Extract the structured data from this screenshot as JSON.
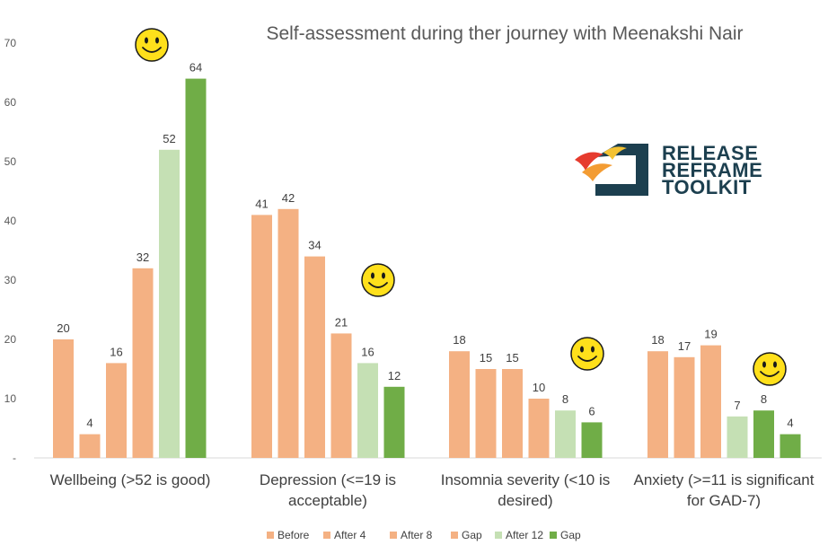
{
  "chart_data": {
    "type": "bar",
    "title": "Self-assessment during ther journey with Meenakshi Nair",
    "xlabel": "",
    "ylabel": "",
    "ylim": [
      0,
      70
    ],
    "yticks": [
      0,
      10,
      20,
      30,
      40,
      50,
      60,
      70
    ],
    "ytick_labels": [
      "-",
      "10",
      "20",
      "30",
      "40",
      "50",
      "60",
      "70"
    ],
    "grid": false,
    "legend_position": "bottom",
    "categories": [
      [
        "Wellbeing (>52 is good)"
      ],
      [
        "Depression (<=19 is",
        "acceptable)"
      ],
      [
        "Insomnia severity (<10 is",
        "desired)"
      ],
      [
        "Anxiety (>=11 is significant",
        "for GAD-7)"
      ]
    ],
    "series": [
      {
        "name": "Before",
        "color": "#f4b183",
        "values": [
          20,
          41,
          18,
          18
        ]
      },
      {
        "name": "After 4",
        "color": "#f4b183",
        "values": [
          4,
          42,
          15,
          17
        ]
      },
      {
        "name": "After 8",
        "color": "#f4b183",
        "values": [
          16,
          34,
          15,
          19
        ]
      },
      {
        "name": "Gap",
        "color": "#f4b183",
        "values": [
          32,
          21,
          10,
          null
        ]
      },
      {
        "name": "After 12",
        "color": "#c5e0b4",
        "values": [
          52,
          16,
          8,
          7
        ]
      },
      {
        "name": "Gap",
        "color": "#70ad47",
        "values": [
          64,
          12,
          6,
          8
        ]
      },
      {
        "name": "",
        "color": "#70ad47",
        "values": [
          null,
          null,
          null,
          4
        ]
      }
    ],
    "legend": [
      {
        "name": "Before",
        "color": "#f4b183"
      },
      {
        "name": "After 4",
        "color": "#f4b183"
      },
      {
        "name": "After 8",
        "color": "#f4b183"
      },
      {
        "name": "Gap",
        "color": "#f4b183"
      },
      {
        "name": "After 12",
        "color": "#c5e0b4"
      },
      {
        "name": "Gap",
        "color": "#70ad47"
      }
    ],
    "annotations": [
      "smiley-face-icon above Wellbeing",
      "smiley-face-icon above Depression",
      "smiley-face-icon above Insomnia severity",
      "smiley-face-icon above Anxiety"
    ]
  },
  "logo": {
    "line1": "RELEASE",
    "line2": "REFRAME",
    "line3": "TOOLKIT",
    "icon": "release-reframe-toolkit-logo-icon"
  },
  "colors": {
    "orange": "#f4b183",
    "light_green": "#c5e0b4",
    "green": "#70ad47",
    "text": "#404040"
  }
}
